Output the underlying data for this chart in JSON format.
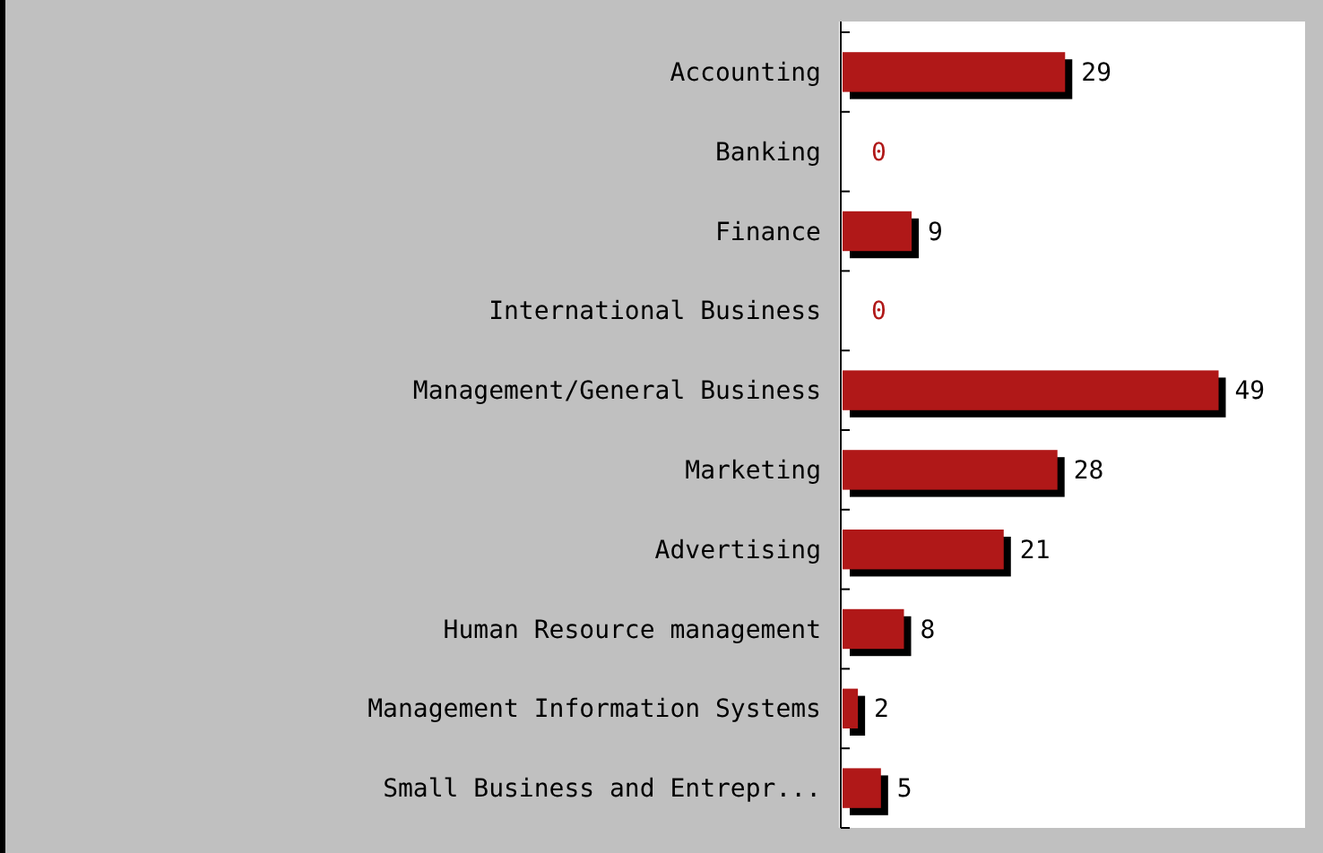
{
  "chart_data": {
    "type": "bar",
    "orientation": "horizontal",
    "categories": [
      "Accounting",
      "Banking",
      "Finance",
      "International Business",
      "Management/General Business",
      "Marketing",
      "Advertising",
      "Human Resource management",
      "Management Information Systems",
      "Small Business and Entrepr..."
    ],
    "values": [
      29,
      0,
      9,
      0,
      49,
      28,
      21,
      8,
      2,
      5
    ],
    "color": "#b01818",
    "data_labels": true
  }
}
